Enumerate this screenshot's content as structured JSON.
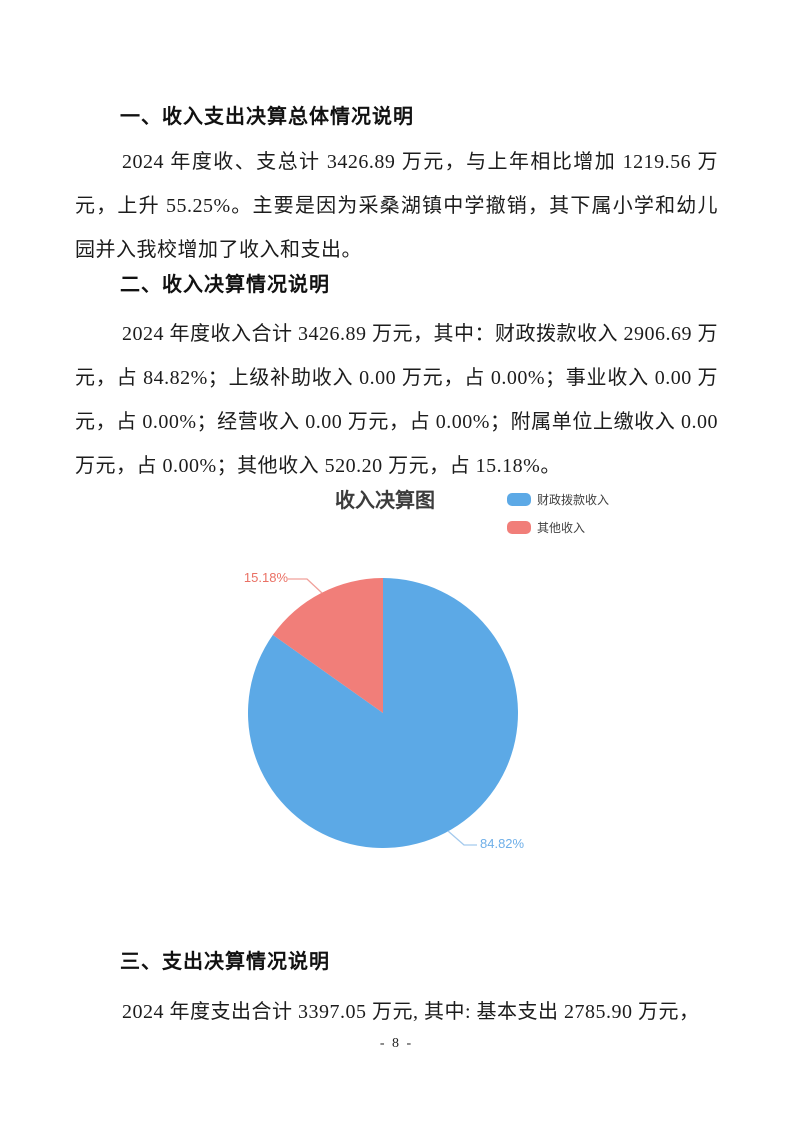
{
  "document": {
    "sections": [
      {
        "heading": "一、收入支出决算总体情况说明",
        "body": "2024 年度收、支总计 3426.89 万元，与上年相比增加 1219.56 万元，上升 55.25%。主要是因为采桑湖镇中学撤销，其下属小学和幼儿园并入我校增加了收入和支出。"
      },
      {
        "heading": "二、收入决算情况说明",
        "body": "2024 年度收入合计 3426.89 万元，其中：财政拨款收入 2906.69 万元，占 84.82%；上级补助收入 0.00 万元，占 0.00%；事业收入 0.00 万元，占 0.00%；经营收入 0.00 万元，占 0.00%；附属单位上缴收入 0.00 万元，占 0.00%；其他收入 520.20 万元，占 15.18%。"
      },
      {
        "heading": "三、支出决算情况说明",
        "body": "2024 年度支出合计 3397.05 万元, 其中: 基本支出 2785.90 万元，"
      }
    ],
    "page_number": "- 8 -"
  },
  "chart_data": {
    "type": "pie",
    "title": "收入决算图",
    "legend_position": "top-right",
    "unit": "万元",
    "series": [
      {
        "name": "财政拨款收入",
        "value": 2906.69,
        "percent": 84.82,
        "label": "84.82%",
        "color": "#5CA9E6",
        "label_color": "#6FAFE8"
      },
      {
        "name": "其他收入",
        "value": 520.2,
        "percent": 15.18,
        "label": "15.18%",
        "color": "#F17E79",
        "label_color": "#EA7165"
      }
    ]
  }
}
